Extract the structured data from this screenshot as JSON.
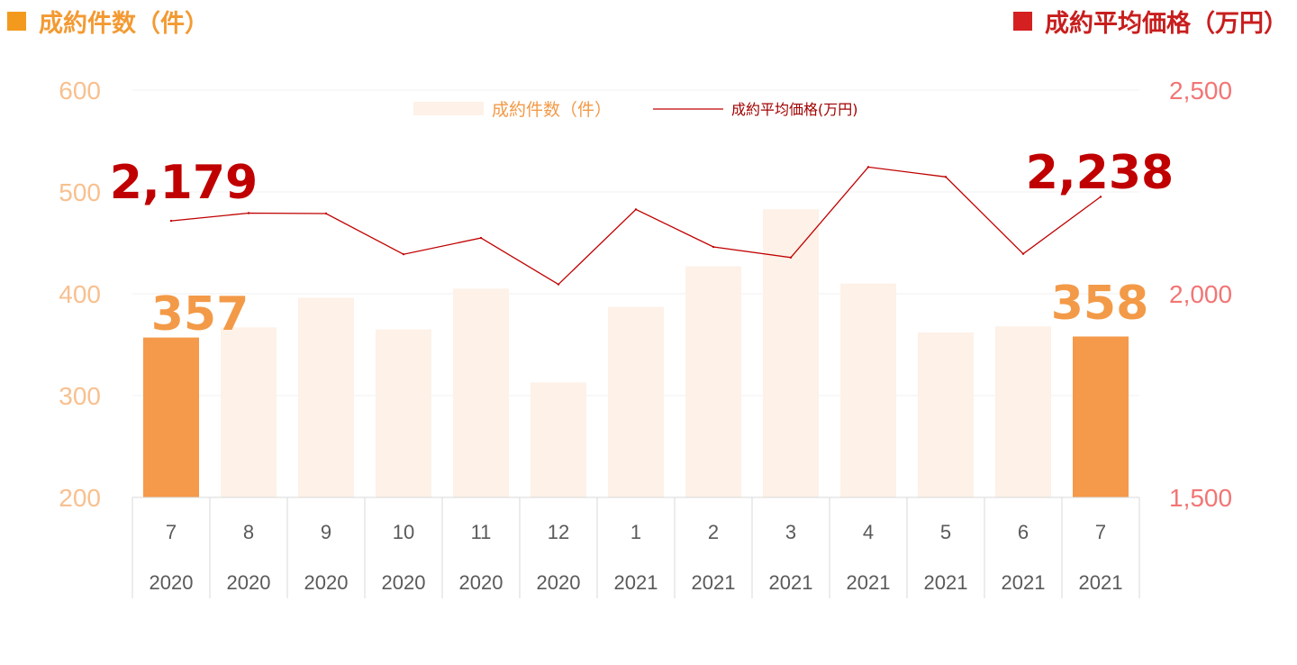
{
  "headers": {
    "left": "成約件数（件）",
    "right": "成約平均価格（万円）"
  },
  "colors": {
    "bar_highlight": "#f5994a",
    "bar_faded": "#fdf1e8",
    "line": "#c00000",
    "left_axis": "#f8c08f",
    "right_axis": "#f27575"
  },
  "chart_data": {
    "type": "bar",
    "categories": [
      "7",
      "8",
      "9",
      "10",
      "11",
      "12",
      "1",
      "2",
      "3",
      "4",
      "5",
      "6",
      "7"
    ],
    "years": [
      "2020",
      "2020",
      "2020",
      "2020",
      "2020",
      "2020",
      "2021",
      "2021",
      "2021",
      "2021",
      "2021",
      "2021",
      "2021"
    ],
    "series": [
      {
        "name": "成約件数（件）",
        "type": "bar",
        "axis": "left",
        "values": [
          357,
          367,
          396,
          365,
          405,
          313,
          387,
          427,
          483,
          410,
          362,
          368,
          358
        ]
      },
      {
        "name": "成約平均価格(万円)",
        "type": "line",
        "axis": "right",
        "values": [
          2179,
          2198,
          2197,
          2097,
          2137,
          2023,
          2207,
          2115,
          2089,
          2311,
          2287,
          2098,
          2238
        ]
      }
    ],
    "highlighted_indices": [
      0,
      12
    ],
    "y_left": {
      "lim": [
        200,
        600
      ],
      "ticks": [
        "200",
        "300",
        "400",
        "500",
        "600"
      ]
    },
    "y_right": {
      "lim": [
        1500,
        2500
      ],
      "ticks": [
        "1,500",
        "2,000",
        "2,500"
      ]
    },
    "data_labels": {
      "bar_first": "357",
      "bar_last": "358",
      "line_first": "2,179",
      "line_last": "2,238"
    },
    "legend": {
      "placement": "top-center"
    },
    "grid": true
  }
}
